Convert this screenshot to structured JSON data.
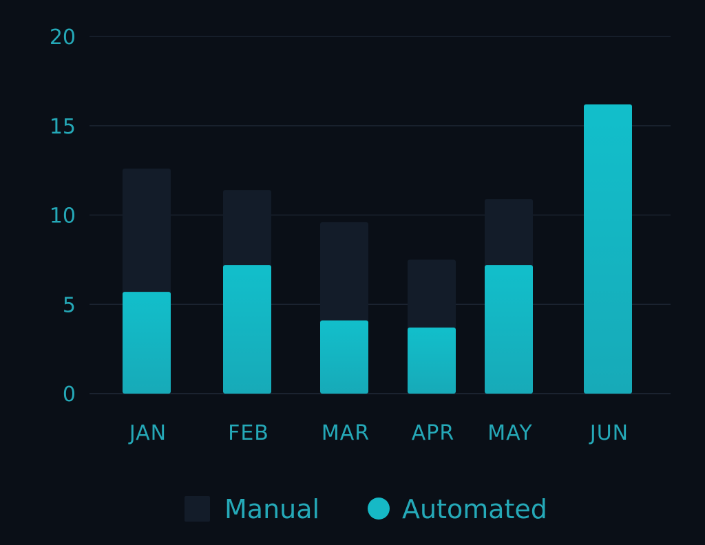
{
  "chart_data": {
    "type": "bar",
    "stacked": true,
    "categories": [
      "JAN",
      "FEB",
      "MAR",
      "APR",
      "MAY",
      "JUN"
    ],
    "series": [
      {
        "name": "Automated",
        "values": [
          5.7,
          7.2,
          4.1,
          3.7,
          7.2,
          16.2
        ],
        "color": "#16b9c6"
      },
      {
        "name": "Manual",
        "values": [
          6.9,
          4.2,
          5.5,
          3.8,
          3.7,
          0
        ],
        "color": "#131c29"
      }
    ],
    "title": "",
    "xlabel": "",
    "ylabel": "",
    "ylim": [
      0,
      20
    ],
    "yticks": [
      0,
      5,
      10,
      15,
      20
    ],
    "grid": true,
    "legend": {
      "position": "bottom-center",
      "entries": [
        {
          "label": "Manual",
          "marker": "square",
          "color": "#131c29"
        },
        {
          "label": "Automated",
          "marker": "circle",
          "color": "#16b9c6"
        }
      ]
    },
    "colors": {
      "background": "#0a0f17",
      "grid": "#1b2330",
      "text": "#25a9b8"
    }
  }
}
